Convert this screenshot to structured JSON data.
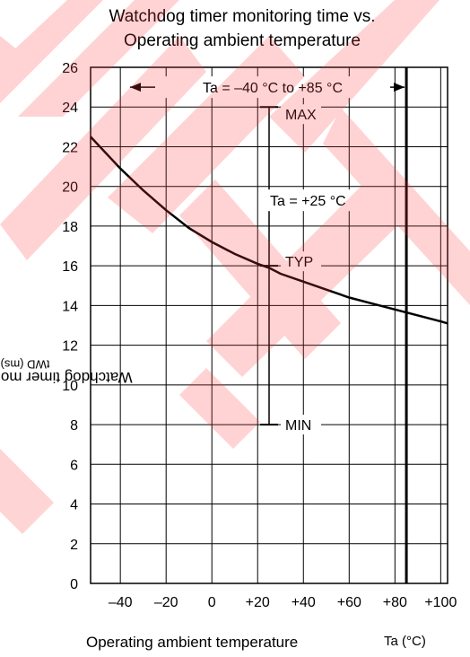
{
  "title_line1": "Watchdog timer monitoring time vs.",
  "title_line2": "Operating ambient temperature",
  "ylabel_main": "Watchdog timer monitoring time",
  "ylabel_symbol": "tWD (ms)",
  "xlabel_main": "Operating ambient temperature",
  "xlabel_unit": "Ta (°C)",
  "chart_data": {
    "type": "line",
    "xlim": [
      -53,
      103
    ],
    "ylim": [
      0,
      26
    ],
    "x_ticks": [
      -40,
      -20,
      0,
      20,
      40,
      60,
      80,
      100
    ],
    "x_tick_labels": [
      "–40",
      "–20",
      "0",
      "+20",
      "+40",
      "+60",
      "+80",
      "+100"
    ],
    "y_ticks": [
      0,
      2,
      4,
      6,
      8,
      10,
      12,
      14,
      16,
      18,
      20,
      22,
      24,
      26
    ],
    "y_tick_labels": [
      "0",
      "2",
      "4",
      "6",
      "8",
      "10",
      "12",
      "14",
      "16",
      "18",
      "20",
      "22",
      "24",
      "26"
    ],
    "grid": true,
    "series": [
      {
        "x": [
          -53,
          -40,
          -30,
          -20,
          -10,
          0,
          10,
          20,
          25,
          30,
          40,
          50,
          60,
          70,
          80,
          90,
          100,
          103
        ],
        "values": [
          22.5,
          20.9,
          19.8,
          18.8,
          17.9,
          17.2,
          16.6,
          16.1,
          15.9,
          15.6,
          15.2,
          14.8,
          14.4,
          14.1,
          13.8,
          13.5,
          13.2,
          13.1
        ]
      }
    ],
    "annotations": {
      "range_text": "Ta = –40 °C to +85 °C",
      "range_x": [
        -53,
        85
      ],
      "range_y": 25,
      "vertical_line_x": 85,
      "point_label": "Ta = +25 °C",
      "error_bar": {
        "x": 25,
        "max": 24,
        "typ": 16,
        "min": 8
      },
      "max_label": "MAX",
      "typ_label": "TYP",
      "min_label": "MIN"
    }
  }
}
